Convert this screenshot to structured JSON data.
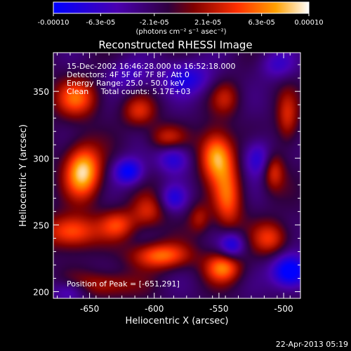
{
  "colorbar": {
    "tick_labels": [
      "-0.00010",
      "-6.3e-05",
      "-2.1e-05",
      "2.1e-05",
      "6.3e-05",
      "0.00010"
    ],
    "tick_values": [
      -0.0001,
      -6.3e-05,
      -2.1e-05,
      2.1e-05,
      6.3e-05,
      0.0001
    ],
    "range": [
      -0.0001,
      0.0001
    ],
    "unit_label": "(photons cm⁻² s⁻¹ asec⁻²)",
    "colors": [
      "#0000ff",
      "#4a00b0",
      "#300040",
      "#800000",
      "#ff3000",
      "#ffa000",
      "#ffffff"
    ]
  },
  "chart_data": {
    "type": "heatmap",
    "title": "Reconstructed RHESSI Image",
    "xlabel": "Heliocentric X (arcsec)",
    "ylabel": "Heliocentric Y (arcsec)",
    "xlim": [
      -678,
      -487
    ],
    "ylim": [
      195,
      379
    ],
    "x_ticks": [
      -650,
      -600,
      -550,
      -500
    ],
    "y_ticks": [
      200,
      250,
      300,
      350
    ],
    "x_tick_labels": [
      "-650",
      "-600",
      "-550",
      "-500"
    ],
    "y_tick_labels": [
      "200",
      "250",
      "300",
      "350"
    ],
    "annotations": {
      "time": "15-Dec-2002 16:46:28.000 to 16:52:18.000",
      "detectors": "Detectors: 4F 5F 6F 7F 8F, Att 0",
      "energy": "Energy Range: 25.0 - 50.0 keV",
      "clean": "Clean     Total counts: 5.17E+03",
      "peak": "Position of Peak = [-651,291]"
    },
    "peak_position": [
      -651,
      291
    ],
    "background_value": -2e-05,
    "blobs": [
      {
        "x": -655,
        "y": 290,
        "sx": 10,
        "sy": 14,
        "a": 0.00011
      },
      {
        "x": -552,
        "y": 302,
        "sx": 9,
        "sy": 13,
        "a": 0.0001
      },
      {
        "x": -543,
        "y": 270,
        "sx": 8,
        "sy": 18,
        "a": 7e-05
      },
      {
        "x": -660,
        "y": 345,
        "sx": 12,
        "sy": 10,
        "a": 7e-05
      },
      {
        "x": -612,
        "y": 335,
        "sx": 9,
        "sy": 8,
        "a": 5e-05
      },
      {
        "x": -590,
        "y": 315,
        "sx": 10,
        "sy": 7,
        "a": 5e-05
      },
      {
        "x": -664,
        "y": 245,
        "sx": 14,
        "sy": 9,
        "a": 8e-05
      },
      {
        "x": -628,
        "y": 250,
        "sx": 10,
        "sy": 8,
        "a": 6e-05
      },
      {
        "x": -605,
        "y": 260,
        "sx": 9,
        "sy": 9,
        "a": 5e-05
      },
      {
        "x": -595,
        "y": 227,
        "sx": 16,
        "sy": 7,
        "a": 8e-05
      },
      {
        "x": -547,
        "y": 218,
        "sx": 10,
        "sy": 8,
        "a": 8e-05
      },
      {
        "x": -640,
        "y": 205,
        "sx": 18,
        "sy": 7,
        "a": 5e-05
      },
      {
        "x": -508,
        "y": 290,
        "sx": 6,
        "sy": 10,
        "a": 6e-05
      },
      {
        "x": -510,
        "y": 240,
        "sx": 10,
        "sy": 9,
        "a": 6e-05
      },
      {
        "x": -497,
        "y": 330,
        "sx": 6,
        "sy": 14,
        "a": 5e-05
      },
      {
        "x": -545,
        "y": 345,
        "sx": 8,
        "sy": 9,
        "a": 4e-05
      },
      {
        "x": -565,
        "y": 255,
        "sx": 6,
        "sy": 8,
        "a": 4e-05
      },
      {
        "x": -620,
        "y": 290,
        "sx": 8,
        "sy": 7,
        "a": -8e-05
      },
      {
        "x": -585,
        "y": 300,
        "sx": 9,
        "sy": 8,
        "a": -6e-05
      },
      {
        "x": -540,
        "y": 235,
        "sx": 7,
        "sy": 7,
        "a": -7e-05
      },
      {
        "x": -495,
        "y": 215,
        "sx": 10,
        "sy": 9,
        "a": -0.0001
      },
      {
        "x": -520,
        "y": 300,
        "sx": 8,
        "sy": 10,
        "a": -6e-05
      },
      {
        "x": -575,
        "y": 360,
        "sx": 14,
        "sy": 9,
        "a": -6e-05
      },
      {
        "x": -620,
        "y": 362,
        "sx": 12,
        "sy": 8,
        "a": -4e-05
      },
      {
        "x": -665,
        "y": 200,
        "sx": 10,
        "sy": 6,
        "a": -5e-05
      },
      {
        "x": -585,
        "y": 270,
        "sx": 7,
        "sy": 7,
        "a": -5e-05
      },
      {
        "x": -505,
        "y": 370,
        "sx": 10,
        "sy": 8,
        "a": -4e-05
      }
    ]
  },
  "footer": {
    "timestamp": "22-Apr-2013 05:19"
  }
}
